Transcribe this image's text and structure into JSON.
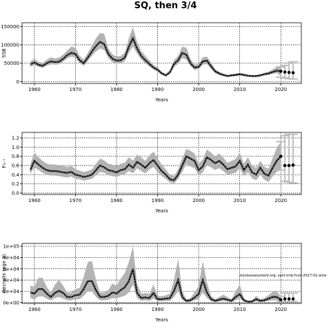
{
  "chart_data": [
    {
      "type": "line",
      "title": "SQ, then 3/4",
      "xlabel": "Years",
      "ylabel": "SSB",
      "xlim": [
        1957,
        2025
      ],
      "ylim": [
        -5000,
        160000
      ],
      "xticks": [
        1960,
        1970,
        1980,
        1990,
        2000,
        2010,
        2020
      ],
      "yticks": [
        0,
        50000,
        100000,
        150000
      ],
      "ytick_labels": [
        "0",
        "50000",
        "100000",
        "150000"
      ],
      "grid": true,
      "series": [
        {
          "style": "estimate",
          "x": [
            1959,
            1960,
            1961,
            1962,
            1963,
            1964,
            1965,
            1966,
            1967,
            1968,
            1969,
            1970,
            1971,
            1972,
            1973,
            1974,
            1975,
            1976,
            1977,
            1978,
            1979,
            1980,
            1981,
            1982,
            1983,
            1984,
            1985,
            1986,
            1987,
            1988,
            1989,
            1990,
            1991,
            1992,
            1993,
            1994,
            1995,
            1996,
            1997,
            1998,
            1999,
            2000,
            2001,
            2002,
            2003,
            2004,
            2005,
            2006,
            2007,
            2008,
            2009,
            2010,
            2011,
            2012,
            2013,
            2014,
            2015,
            2016,
            2017,
            2018,
            2019,
            2020
          ],
          "y": [
            47000,
            52000,
            46000,
            43000,
            50000,
            55000,
            53000,
            54000,
            62000,
            72000,
            78000,
            75000,
            58000,
            50000,
            65000,
            82000,
            97000,
            108000,
            102000,
            75000,
            62000,
            57000,
            58000,
            65000,
            95000,
            118000,
            90000,
            70000,
            58000,
            48000,
            38000,
            32000,
            22000,
            17000,
            25000,
            48000,
            58000,
            78000,
            73000,
            50000,
            38000,
            40000,
            55000,
            57000,
            42000,
            28000,
            22000,
            18000,
            15000,
            17000,
            18000,
            20000,
            18000,
            16000,
            15000,
            15000,
            17000,
            20000,
            22000,
            26000,
            30000,
            28000
          ],
          "lower": [
            40000,
            45000,
            40000,
            37000,
            43000,
            47000,
            46000,
            47000,
            54000,
            63000,
            68000,
            65000,
            50000,
            43000,
            56000,
            70000,
            82000,
            90000,
            86000,
            64000,
            53000,
            49000,
            50000,
            55000,
            78000,
            96000,
            76000,
            60000,
            50000,
            41000,
            33000,
            27000,
            19000,
            14000,
            21000,
            40000,
            48000,
            64000,
            60000,
            42000,
            32000,
            34000,
            46000,
            48000,
            35000,
            23000,
            18000,
            15000,
            13000,
            14000,
            15000,
            17000,
            15000,
            13000,
            12000,
            12000,
            14000,
            17000,
            18000,
            21000,
            23000,
            16000
          ],
          "upper": [
            55000,
            62000,
            54000,
            51000,
            59000,
            66000,
            63000,
            65000,
            73000,
            85000,
            95000,
            92000,
            70000,
            60000,
            78000,
            98000,
            118000,
            132000,
            130000,
            90000,
            74000,
            68000,
            70000,
            78000,
            118000,
            148000,
            108000,
            84000,
            70000,
            58000,
            45000,
            39000,
            27000,
            21000,
            31000,
            58000,
            70000,
            95000,
            92000,
            62000,
            46000,
            48000,
            66000,
            68000,
            52000,
            34000,
            27000,
            22000,
            18000,
            20000,
            22000,
            24000,
            22000,
            19000,
            18000,
            18000,
            20000,
            24000,
            27000,
            33000,
            40000,
            42000
          ]
        },
        {
          "style": "projection",
          "x": [
            2020,
            2021,
            2022,
            2023
          ],
          "y": [
            28000,
            26000,
            25000,
            24000
          ],
          "lower": [
            12000,
            10000,
            8000,
            7000
          ],
          "upper": [
            40000,
            44000,
            50000,
            54000
          ]
        }
      ]
    },
    {
      "type": "line",
      "xlabel": "Years",
      "ylabel": "F₃₋₇",
      "xlim": [
        1957,
        2025
      ],
      "ylim": [
        -0.03,
        1.32
      ],
      "xticks": [
        1960,
        1970,
        1980,
        1990,
        2000,
        2010,
        2020
      ],
      "yticks": [
        0.0,
        0.2,
        0.4,
        0.6,
        0.8,
        1.0,
        1.2
      ],
      "ytick_labels": [
        "0.0",
        "0.2",
        "0.4",
        "0.6",
        "0.8",
        "1.0",
        "1.2"
      ],
      "grid": true,
      "series": [
        {
          "style": "estimate",
          "x": [
            1959,
            1960,
            1961,
            1962,
            1963,
            1964,
            1965,
            1966,
            1967,
            1968,
            1969,
            1970,
            1971,
            1972,
            1973,
            1974,
            1975,
            1976,
            1977,
            1978,
            1979,
            1980,
            1981,
            1982,
            1983,
            1984,
            1985,
            1986,
            1987,
            1988,
            1989,
            1990,
            1991,
            1992,
            1993,
            1994,
            1995,
            1996,
            1997,
            1998,
            1999,
            2000,
            2001,
            2002,
            2003,
            2004,
            2005,
            2006,
            2007,
            2008,
            2009,
            2010,
            2011,
            2012,
            2013,
            2014,
            2015,
            2016,
            2017,
            2018,
            2019,
            2020
          ],
          "y": [
            0.5,
            0.7,
            0.62,
            0.55,
            0.5,
            0.48,
            0.48,
            0.47,
            0.45,
            0.44,
            0.46,
            0.4,
            0.38,
            0.35,
            0.37,
            0.4,
            0.5,
            0.6,
            0.56,
            0.5,
            0.48,
            0.45,
            0.5,
            0.52,
            0.62,
            0.55,
            0.68,
            0.62,
            0.55,
            0.65,
            0.72,
            0.6,
            0.48,
            0.4,
            0.3,
            0.28,
            0.4,
            0.6,
            0.8,
            0.75,
            0.7,
            0.5,
            0.58,
            0.78,
            0.72,
            0.65,
            0.7,
            0.62,
            0.52,
            0.55,
            0.58,
            0.7,
            0.5,
            0.62,
            0.45,
            0.4,
            0.55,
            0.42,
            0.38,
            0.55,
            0.7,
            0.8
          ],
          "lower": [
            0.42,
            0.56,
            0.5,
            0.44,
            0.4,
            0.38,
            0.38,
            0.37,
            0.35,
            0.34,
            0.36,
            0.31,
            0.3,
            0.27,
            0.29,
            0.31,
            0.39,
            0.46,
            0.44,
            0.39,
            0.37,
            0.35,
            0.39,
            0.41,
            0.48,
            0.43,
            0.54,
            0.48,
            0.43,
            0.51,
            0.57,
            0.46,
            0.37,
            0.31,
            0.23,
            0.21,
            0.31,
            0.46,
            0.64,
            0.58,
            0.54,
            0.38,
            0.45,
            0.61,
            0.56,
            0.5,
            0.54,
            0.48,
            0.4,
            0.42,
            0.44,
            0.54,
            0.37,
            0.46,
            0.32,
            0.28,
            0.4,
            0.29,
            0.24,
            0.36,
            0.46,
            0.5
          ],
          "upper": [
            0.62,
            0.88,
            0.78,
            0.7,
            0.64,
            0.62,
            0.62,
            0.61,
            0.59,
            0.57,
            0.59,
            0.52,
            0.49,
            0.46,
            0.48,
            0.52,
            0.64,
            0.75,
            0.71,
            0.64,
            0.62,
            0.58,
            0.64,
            0.66,
            0.78,
            0.7,
            0.84,
            0.78,
            0.7,
            0.82,
            0.9,
            0.76,
            0.62,
            0.52,
            0.4,
            0.37,
            0.52,
            0.76,
            0.96,
            0.92,
            0.86,
            0.64,
            0.73,
            0.95,
            0.88,
            0.8,
            0.86,
            0.77,
            0.66,
            0.7,
            0.74,
            0.88,
            0.64,
            0.78,
            0.6,
            0.55,
            0.7,
            0.57,
            0.53,
            0.76,
            0.98,
            1.12
          ]
        },
        {
          "style": "projection",
          "x": [
            2020,
            2021,
            2022,
            2023
          ],
          "y": [
            0.8,
            0.6,
            0.6,
            0.61
          ],
          "lower": [
            0.5,
            0.26,
            0.24,
            0.22
          ],
          "upper": [
            1.12,
            1.25,
            1.28,
            1.28
          ]
        }
      ]
    },
    {
      "type": "line",
      "xlabel": "Years",
      "ylabel": "Recruits (age 3)",
      "xlim": [
        1957,
        2025
      ],
      "ylim": [
        -1500,
        105000
      ],
      "xticks": [
        1960,
        1970,
        1980,
        1990,
        2000,
        2010,
        2020
      ],
      "yticks": [
        0,
        20000,
        40000,
        60000,
        80000,
        100000
      ],
      "ytick_labels": [
        "0e+00",
        "2e+04",
        "4e+04",
        "6e+04",
        "8e+04",
        "1e+05"
      ],
      "grid": true,
      "annotation": "stockassessment.org, sam-tmb-fcod-2017-02-ante",
      "series": [
        {
          "style": "estimate",
          "x": [
            1959,
            1960,
            1961,
            1962,
            1963,
            1964,
            1965,
            1966,
            1967,
            1968,
            1969,
            1970,
            1971,
            1972,
            1973,
            1974,
            1975,
            1976,
            1977,
            1978,
            1979,
            1980,
            1981,
            1982,
            1983,
            1984,
            1985,
            1986,
            1987,
            1988,
            1989,
            1990,
            1991,
            1992,
            1993,
            1994,
            1995,
            1996,
            1997,
            1998,
            1999,
            2000,
            2001,
            2002,
            2003,
            2004,
            2005,
            2006,
            2007,
            2008,
            2009,
            2010,
            2011,
            2012,
            2013,
            2014,
            2015,
            2016,
            2017,
            2018,
            2019,
            2020
          ],
          "y": [
            18000,
            16000,
            24000,
            24000,
            16000,
            10000,
            17000,
            21000,
            17000,
            10000,
            10000,
            13000,
            14000,
            24000,
            38000,
            38000,
            22000,
            10000,
            10000,
            12000,
            18000,
            16000,
            22000,
            27000,
            38000,
            60000,
            17000,
            8000,
            9000,
            8000,
            17000,
            6000,
            6000,
            7000,
            8000,
            21000,
            40000,
            10000,
            3000,
            4000,
            9000,
            15000,
            40000,
            18000,
            6000,
            3000,
            5000,
            7000,
            5000,
            3000,
            10000,
            15000,
            4000,
            1500,
            2000,
            6000,
            3000,
            4000,
            7000,
            10000,
            10000,
            5000
          ],
          "lower": [
            8000,
            6000,
            11000,
            11000,
            7000,
            4000,
            8000,
            10000,
            7000,
            4000,
            4000,
            6000,
            6000,
            12000,
            20000,
            20000,
            10000,
            4000,
            4000,
            5000,
            8000,
            7000,
            10000,
            12000,
            18000,
            32000,
            8000,
            3000,
            4000,
            3000,
            7000,
            2500,
            2500,
            3000,
            3000,
            10000,
            20000,
            4000,
            1000,
            1500,
            4000,
            6000,
            18000,
            8000,
            2500,
            1000,
            2000,
            3000,
            2000,
            1000,
            4000,
            7000,
            1500,
            500,
            800,
            2500,
            1000,
            1500,
            3000,
            4000,
            4000,
            1500
          ],
          "upper": [
            30000,
            28000,
            44000,
            44000,
            28000,
            18000,
            32000,
            40000,
            30000,
            18000,
            18000,
            24000,
            26000,
            46000,
            72000,
            74000,
            40000,
            18000,
            18000,
            22000,
            34000,
            30000,
            42000,
            52000,
            72000,
            100000,
            34000,
            16000,
            17000,
            16000,
            32000,
            12000,
            11000,
            13000,
            16000,
            40000,
            78000,
            20000,
            6000,
            8000,
            18000,
            30000,
            74000,
            36000,
            12000,
            6000,
            10000,
            14000,
            10000,
            6000,
            20000,
            32000,
            8000,
            3000,
            4000,
            12000,
            6000,
            8000,
            13000,
            19000,
            20000,
            11000
          ]
        },
        {
          "style": "projection",
          "x": [
            2020,
            2021,
            2022,
            2023
          ],
          "y": [
            5000,
            6500,
            6500,
            6500
          ],
          "lower": [
            1500,
            1800,
            1800,
            1800
          ],
          "upper": [
            11000,
            17000,
            17000,
            17000
          ]
        }
      ]
    }
  ]
}
